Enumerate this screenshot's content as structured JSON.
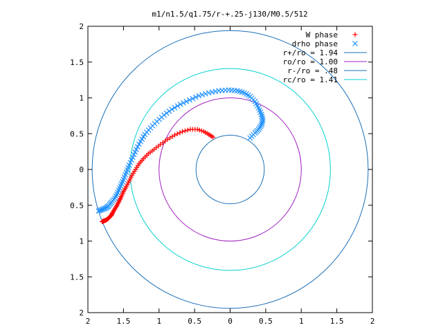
{
  "chart_data": {
    "type": "scatter",
    "title": "m1/n1.5/q1.75/r-+.25-j130/M0.5/512",
    "xlim": [
      -2,
      2
    ],
    "ylim": [
      -2,
      2
    ],
    "x_ticks": [
      "2",
      "1.5",
      "1",
      "0.5",
      "0",
      "0.5",
      "1",
      "1.5",
      "2"
    ],
    "y_ticks": [
      "2",
      "1.5",
      "1",
      "0.5",
      "0",
      "0.5",
      "1",
      "1.5",
      "2"
    ],
    "x_tick_values": [
      -2,
      -1.5,
      -1,
      -0.5,
      0,
      0.5,
      1,
      1.5,
      2
    ],
    "y_tick_values": [
      2,
      1.5,
      1,
      0.5,
      0,
      -0.5,
      -1,
      -1.5,
      -2
    ],
    "grid": false,
    "legend_position": "top-right",
    "legend": [
      {
        "label": "W phase",
        "marker": "plus",
        "color": "#ff0000"
      },
      {
        "label": "drho phase",
        "marker": "cross",
        "color": "#1e90ff"
      },
      {
        "label": "r+/ro = 1.94",
        "marker": "line",
        "color": "#1a6fb8"
      },
      {
        "label": "ro/ro = 1.00",
        "marker": "line",
        "color": "#a020c0"
      },
      {
        "label": "r-/ro = .48",
        "marker": "line",
        "color": "#1a6fb8"
      },
      {
        "label": "rc/ro = 1.41",
        "marker": "line",
        "color": "#00d0d0"
      }
    ],
    "circles": [
      {
        "name": "r+/ro",
        "radius": 1.94,
        "color": "#1a6fb8"
      },
      {
        "name": "ro/ro",
        "radius": 1.0,
        "color": "#a020c0"
      },
      {
        "name": "r-/ro",
        "radius": 0.48,
        "color": "#1a6fb8"
      },
      {
        "name": "rc/ro",
        "radius": 1.41,
        "color": "#00d0d0"
      }
    ],
    "series": [
      {
        "name": "W phase",
        "color": "#ff0000",
        "marker": "plus",
        "points": [
          [
            -1.8,
            -0.73
          ],
          [
            -1.78,
            -0.72
          ],
          [
            -1.75,
            -0.71
          ],
          [
            -1.72,
            -0.69
          ],
          [
            -1.7,
            -0.67
          ],
          [
            -1.67,
            -0.64
          ],
          [
            -1.65,
            -0.6
          ],
          [
            -1.62,
            -0.55
          ],
          [
            -1.59,
            -0.5
          ],
          [
            -1.56,
            -0.44
          ],
          [
            -1.53,
            -0.38
          ],
          [
            -1.5,
            -0.31
          ],
          [
            -1.46,
            -0.24
          ],
          [
            -1.42,
            -0.16
          ],
          [
            -1.38,
            -0.08
          ],
          [
            -1.33,
            0.0
          ],
          [
            -1.28,
            0.08
          ],
          [
            -1.22,
            0.15
          ],
          [
            -1.15,
            0.22
          ],
          [
            -1.07,
            0.28
          ],
          [
            -0.98,
            0.35
          ],
          [
            -0.88,
            0.42
          ],
          [
            -0.78,
            0.48
          ],
          [
            -0.67,
            0.53
          ],
          [
            -0.56,
            0.56
          ],
          [
            -0.46,
            0.56
          ],
          [
            -0.37,
            0.53
          ],
          [
            -0.3,
            0.49
          ],
          [
            -0.24,
            0.45
          ]
        ]
      },
      {
        "name": "drho phase",
        "color": "#1e90ff",
        "marker": "cross",
        "points": [
          [
            -1.85,
            -0.58
          ],
          [
            -1.8,
            -0.56
          ],
          [
            -1.75,
            -0.54
          ],
          [
            -1.71,
            -0.51
          ],
          [
            -1.67,
            -0.46
          ],
          [
            -1.62,
            -0.4
          ],
          [
            -1.58,
            -0.32
          ],
          [
            -1.54,
            -0.23
          ],
          [
            -1.5,
            -0.14
          ],
          [
            -1.46,
            -0.04
          ],
          [
            -1.42,
            0.06
          ],
          [
            -1.37,
            0.17
          ],
          [
            -1.32,
            0.28
          ],
          [
            -1.26,
            0.39
          ],
          [
            -1.2,
            0.49
          ],
          [
            -1.12,
            0.58
          ],
          [
            -1.03,
            0.67
          ],
          [
            -0.93,
            0.76
          ],
          [
            -0.82,
            0.84
          ],
          [
            -0.7,
            0.91
          ],
          [
            -0.57,
            0.97
          ],
          [
            -0.44,
            1.03
          ],
          [
            -0.3,
            1.07
          ],
          [
            -0.16,
            1.1
          ],
          [
            -0.02,
            1.11
          ],
          [
            0.1,
            1.1
          ],
          [
            0.2,
            1.07
          ],
          [
            0.28,
            1.02
          ],
          [
            0.35,
            0.95
          ],
          [
            0.4,
            0.86
          ],
          [
            0.44,
            0.77
          ],
          [
            0.46,
            0.69
          ],
          [
            0.44,
            0.62
          ],
          [
            0.4,
            0.56
          ],
          [
            0.35,
            0.51
          ],
          [
            0.28,
            0.44
          ]
        ]
      }
    ]
  }
}
